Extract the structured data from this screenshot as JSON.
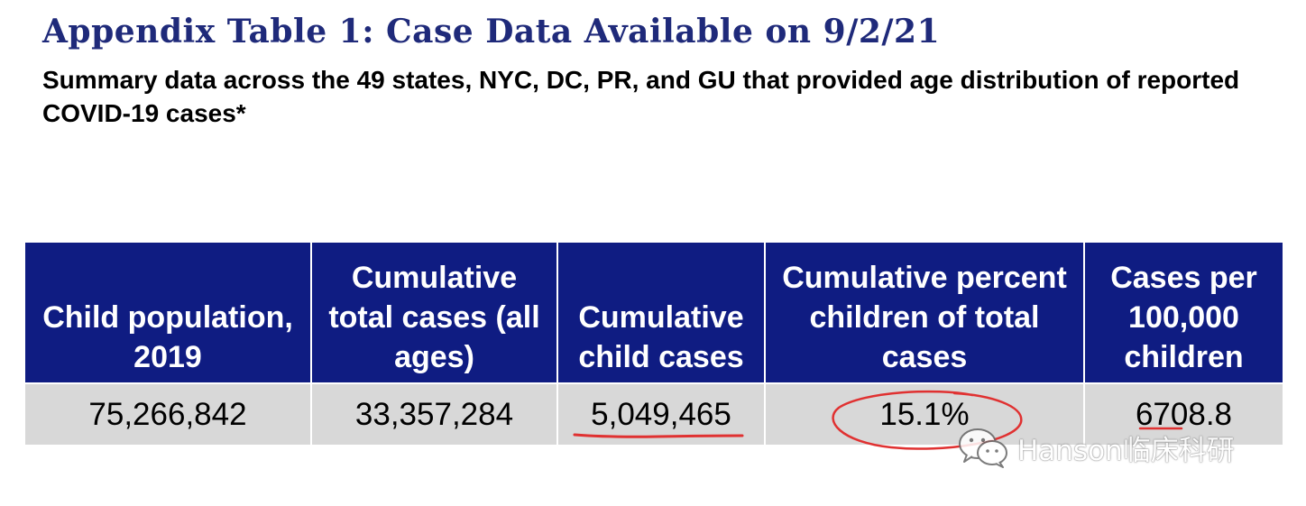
{
  "title": "Appendix Table 1: Case Data Available on 9/2/21",
  "subtitle": "Summary data across the 49 states, NYC, DC, PR, and GU that provided age distribution of reported COVID-19 cases*",
  "table": {
    "headers": [
      "Child population, 2019",
      "Cumulative total cases (all ages)",
      "Cumulative child cases",
      "Cumulative percent children of total cases",
      "Cases per 100,000 children"
    ],
    "row": [
      "75,266,842",
      "33,357,284",
      "5,049,465",
      "15.1%",
      "6708.8"
    ]
  },
  "watermark": {
    "text": "Hanson临床科研",
    "icon": "wechat-icon"
  },
  "colors": {
    "title": "#1f2a7a",
    "header_bg": "#0f1c82",
    "header_text": "#ffffff",
    "row_bg": "#d8d8d8",
    "annotation": "#e03131"
  }
}
